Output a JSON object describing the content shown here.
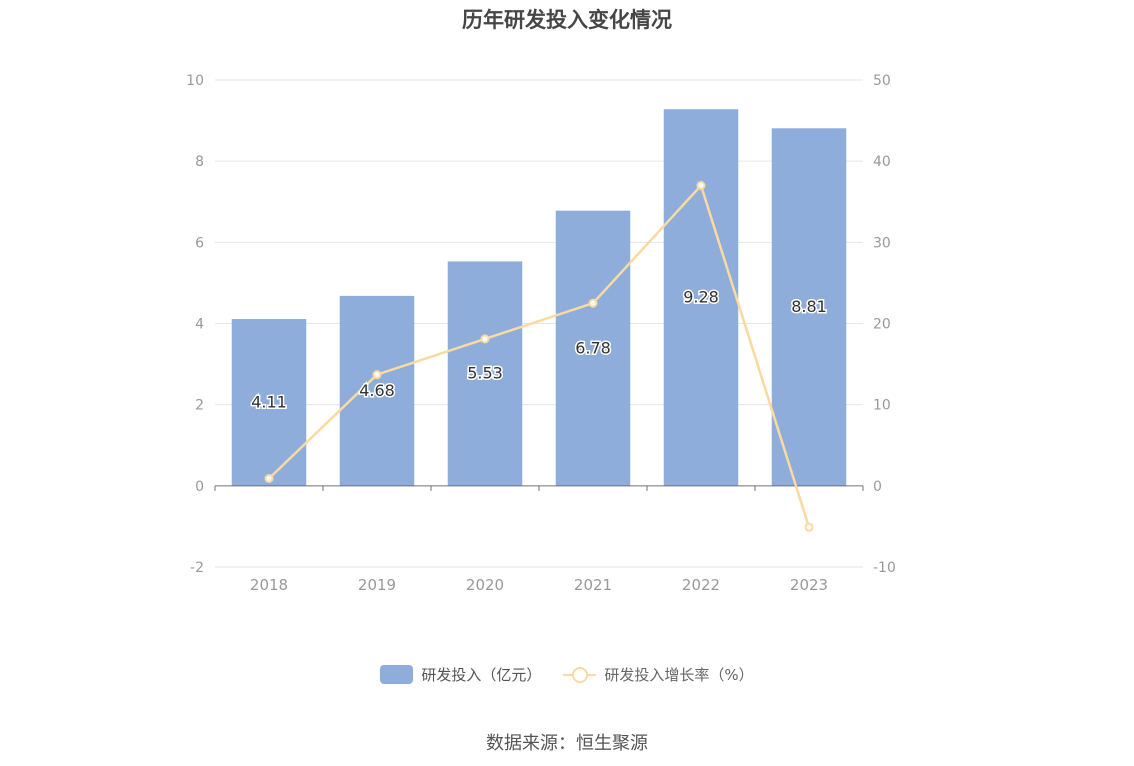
{
  "title": "历年研发投入变化情况",
  "source": "数据来源：恒生聚源",
  "colors": {
    "bar": "#8eaddb",
    "line": "#fbd9a0",
    "grid": "#e3e6f2",
    "axis": "#6e7079",
    "tick_text": "#999999",
    "label_text": "#333333"
  },
  "chart_data": {
    "type": "bar",
    "categories": [
      "2018",
      "2019",
      "2020",
      "2021",
      "2022",
      "2023"
    ],
    "series": [
      {
        "name": "研发投入（亿元）",
        "type": "bar",
        "axis": "left",
        "values": [
          4.11,
          4.68,
          5.53,
          6.78,
          9.28,
          8.81
        ],
        "labels": [
          "4.11",
          "4.68",
          "5.53",
          "6.78",
          "9.28",
          "8.81"
        ]
      },
      {
        "name": "研发投入增长率（%）",
        "type": "line",
        "axis": "right",
        "values": [
          0.9,
          13.7,
          18.1,
          22.5,
          37.0,
          -5.1
        ]
      }
    ],
    "y_left": {
      "min": -2,
      "max": 10,
      "ticks": [
        "-2",
        "0",
        "2",
        "4",
        "6",
        "8",
        "10"
      ]
    },
    "y_right": {
      "min": -10,
      "max": 50,
      "ticks": [
        "-10",
        "0",
        "10",
        "20",
        "30",
        "40",
        "50"
      ]
    },
    "grid": true,
    "legend_position": "bottom"
  }
}
